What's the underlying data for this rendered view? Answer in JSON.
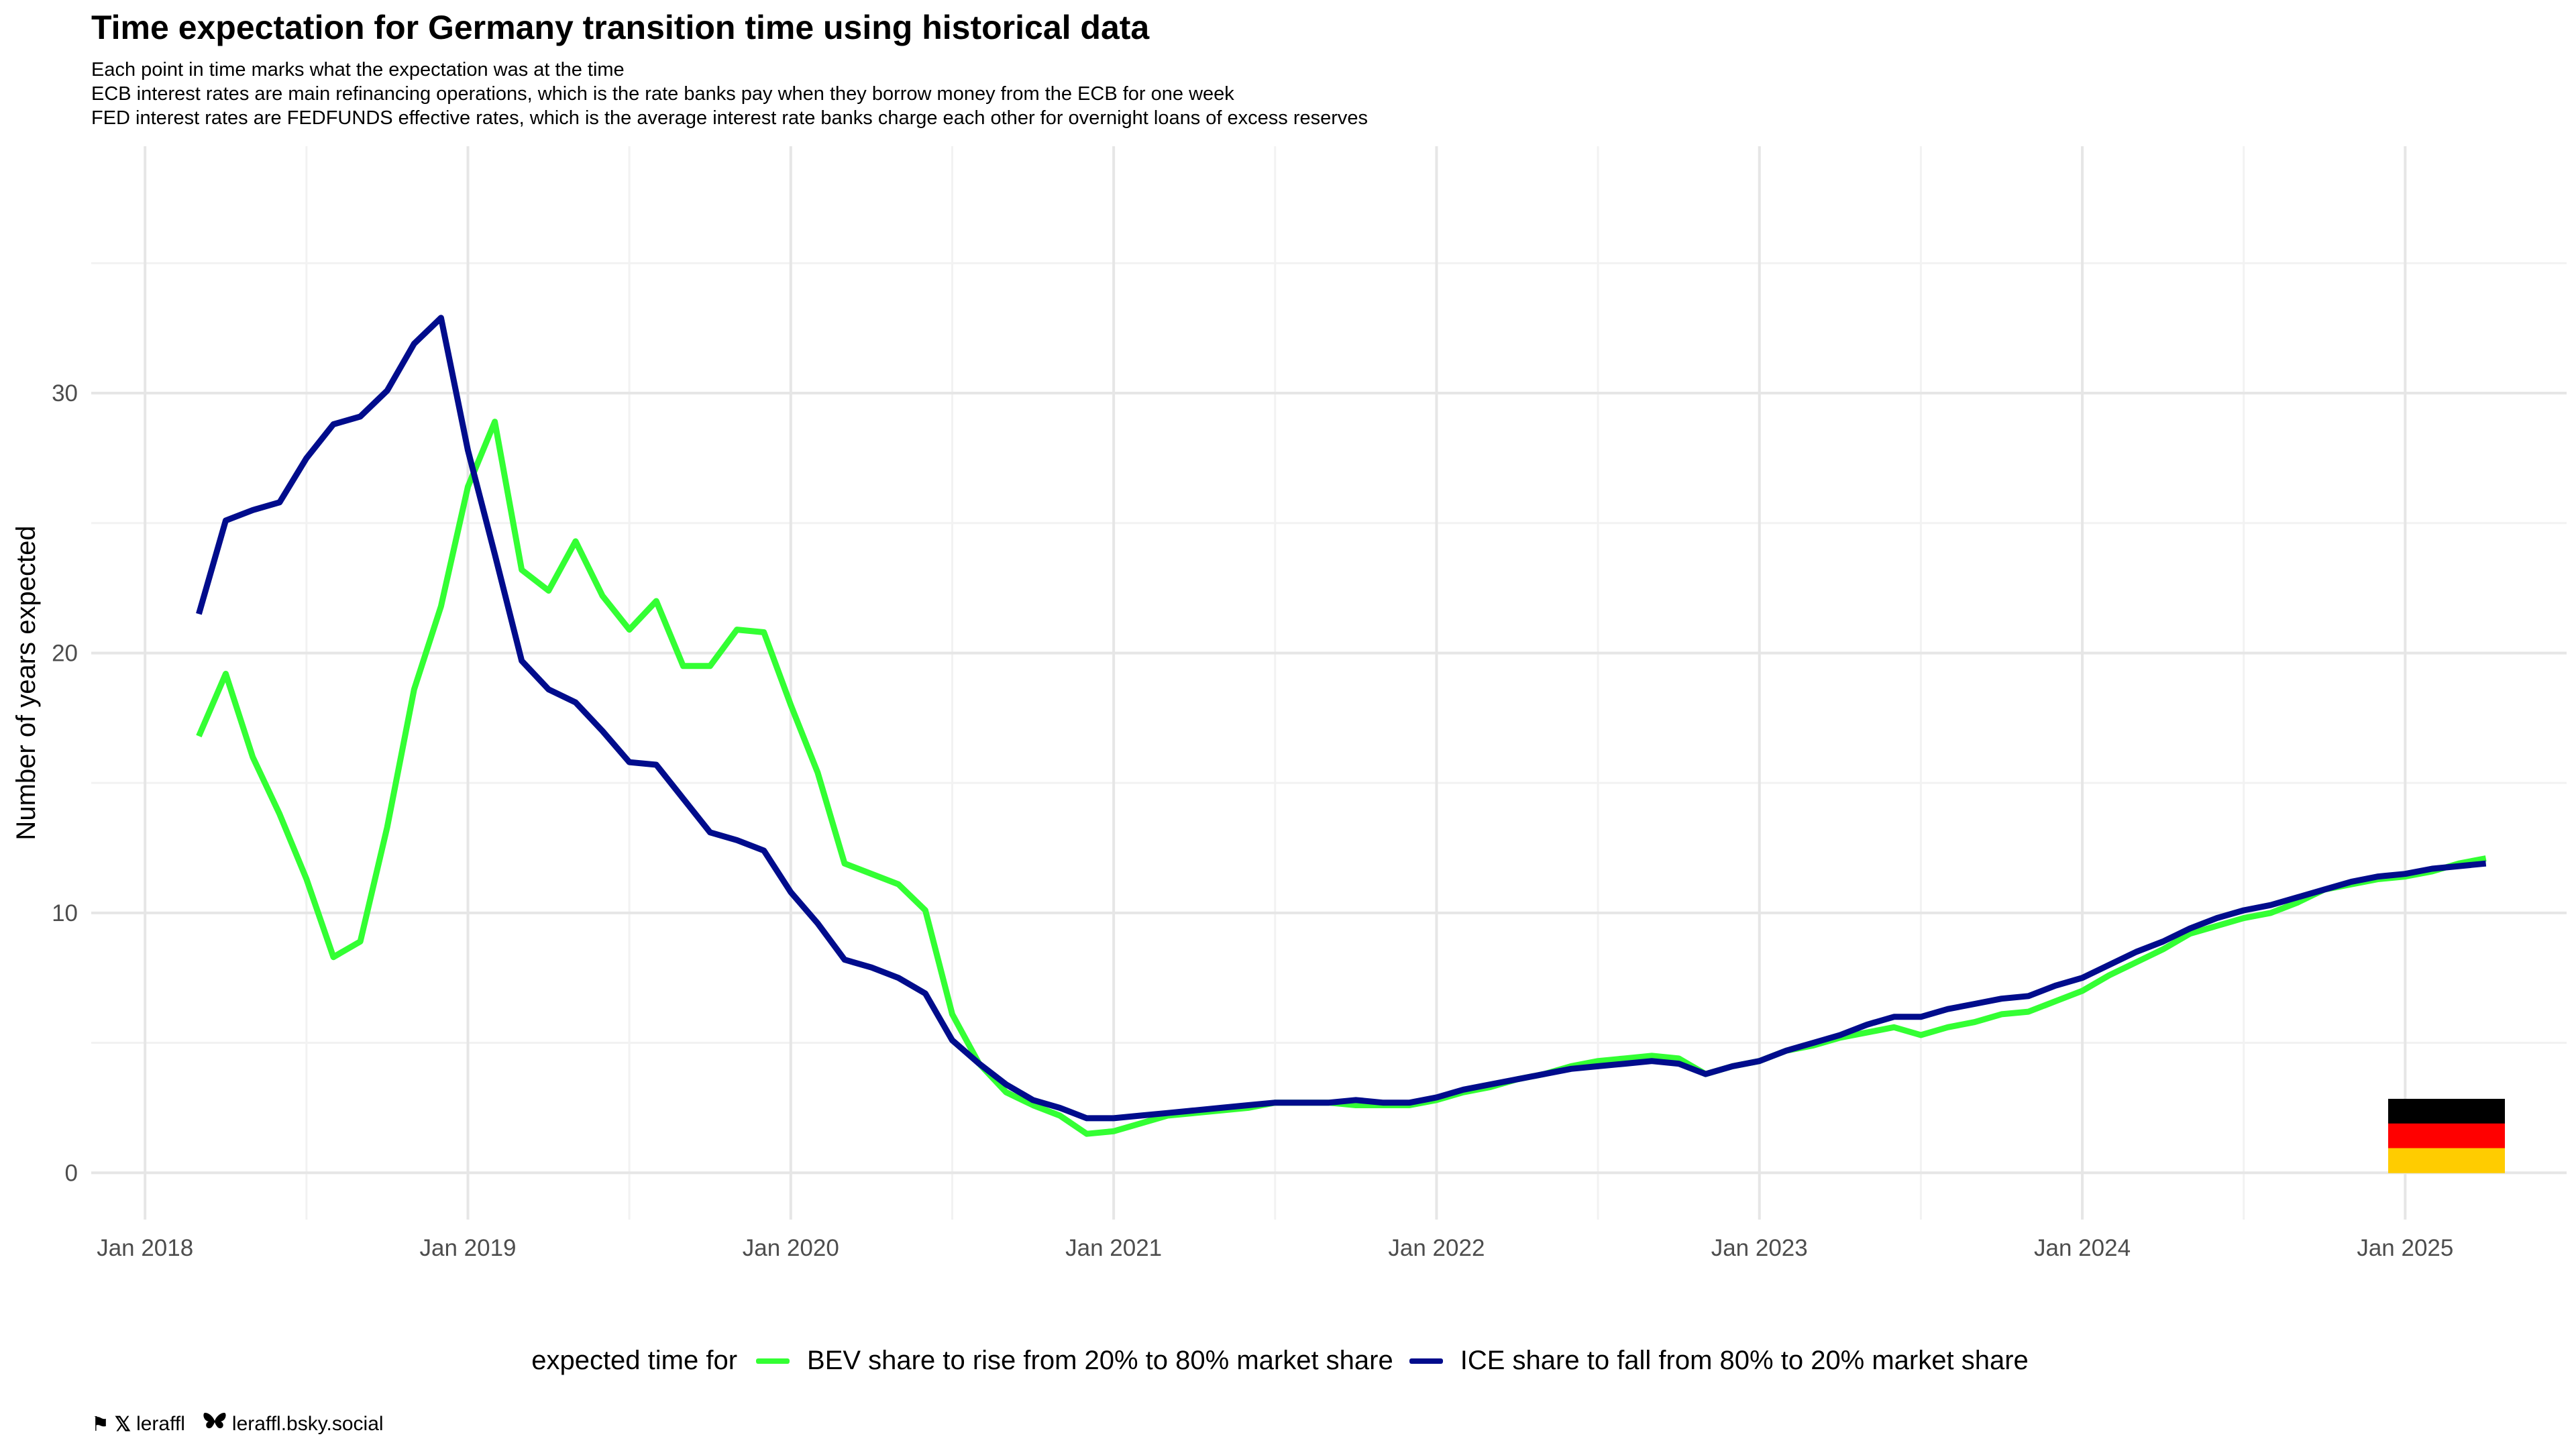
{
  "title": "Time expectation for Germany transition time using historical data",
  "subtitle": [
    "Each point in time marks what the expectation was at the time",
    "ECB interest rates are main refinancing operations, which is the rate banks pay when they borrow money from the ECB for one week",
    "FED interest rates are FEDFUNDS effective rates, which is the average interest rate banks charge each other for overnight loans of excess reserves"
  ],
  "legend": {
    "title": "expected time for",
    "items": [
      "BEV share to rise from 20% to 80% market share",
      "ICE share to fall from 80% to 20% market share"
    ]
  },
  "caption": {
    "handle": "leraffl",
    "bluesky": "leraffl.bsky.social",
    "icons": [
      "flag-icon",
      "x-logo-icon",
      "butterfly-icon"
    ]
  },
  "colors": {
    "bev": "#33ff33",
    "ice": "#000c8c",
    "grid_major": "#e6e6e6",
    "grid_minor": "#f2f2f2",
    "flag": [
      "#000000",
      "#ff0000",
      "#ffcc00"
    ]
  },
  "chart_data": {
    "type": "line",
    "title": "Time expectation for Germany transition time using historical data",
    "xlabel": "",
    "ylabel": "Number of years expected",
    "x_range": [
      "2017-11",
      "2025-07"
    ],
    "ylim": [
      -1.8,
      39.5
    ],
    "x_ticks": [
      "Jan 2018",
      "Jan 2019",
      "Jan 2020",
      "Jan 2021",
      "Jan 2022",
      "Jan 2023",
      "Jan 2024",
      "Jan 2025"
    ],
    "y_ticks": [
      0,
      10,
      20,
      30
    ],
    "grid": true,
    "legend_position": "bottom",
    "x": [
      "2018-03",
      "2018-04",
      "2018-05",
      "2018-06",
      "2018-07",
      "2018-08",
      "2018-09",
      "2018-10",
      "2018-11",
      "2018-12",
      "2019-01",
      "2019-02",
      "2019-03",
      "2019-04",
      "2019-05",
      "2019-06",
      "2019-07",
      "2019-08",
      "2019-09",
      "2019-10",
      "2019-11",
      "2019-12",
      "2020-01",
      "2020-02",
      "2020-03",
      "2020-04",
      "2020-05",
      "2020-06",
      "2020-07",
      "2020-08",
      "2020-09",
      "2020-10",
      "2020-11",
      "2020-12",
      "2021-01",
      "2021-02",
      "2021-03",
      "2021-04",
      "2021-05",
      "2021-06",
      "2021-07",
      "2021-08",
      "2021-09",
      "2021-10",
      "2021-11",
      "2021-12",
      "2022-01",
      "2022-02",
      "2022-03",
      "2022-04",
      "2022-05",
      "2022-06",
      "2022-07",
      "2022-08",
      "2022-09",
      "2022-10",
      "2022-11",
      "2022-12",
      "2023-01",
      "2023-02",
      "2023-03",
      "2023-04",
      "2023-05",
      "2023-06",
      "2023-07",
      "2023-08",
      "2023-09",
      "2023-10",
      "2023-11",
      "2023-12",
      "2024-01",
      "2024-02",
      "2024-03",
      "2024-04",
      "2024-05",
      "2024-06",
      "2024-07",
      "2024-08",
      "2024-09",
      "2024-10",
      "2024-11",
      "2024-12",
      "2025-01",
      "2025-02",
      "2025-03",
      "2025-04"
    ],
    "series": [
      {
        "name": "BEV share to rise from 20% to 80% market share",
        "color": "#33ff33",
        "values": [
          16.8,
          19.2,
          16.0,
          13.8,
          11.3,
          8.3,
          8.9,
          13.3,
          18.6,
          21.8,
          26.4,
          28.9,
          23.2,
          22.4,
          24.3,
          22.2,
          20.9,
          22.0,
          19.5,
          19.5,
          20.9,
          20.8,
          18.0,
          15.4,
          11.9,
          11.5,
          11.1,
          10.1,
          6.1,
          4.2,
          3.1,
          2.6,
          2.2,
          1.5,
          1.6,
          1.9,
          2.2,
          2.3,
          2.4,
          2.5,
          2.7,
          2.7,
          2.7,
          2.6,
          2.6,
          2.6,
          2.8,
          3.1,
          3.3,
          3.6,
          3.8,
          4.1,
          4.3,
          4.4,
          4.5,
          4.4,
          3.8,
          4.1,
          4.3,
          4.7,
          4.9,
          5.2,
          5.4,
          5.6,
          5.3,
          5.6,
          5.8,
          6.1,
          6.2,
          6.6,
          7.0,
          7.6,
          8.1,
          8.6,
          9.2,
          9.5,
          9.8,
          10.0,
          10.4,
          10.9,
          11.1,
          11.3,
          11.4,
          11.6,
          11.9,
          12.1
        ]
      },
      {
        "name": "ICE share to fall from 80% to 20% market share",
        "color": "#000c8c",
        "values": [
          21.5,
          25.1,
          25.5,
          25.8,
          27.5,
          28.8,
          29.1,
          30.1,
          31.9,
          32.9,
          27.8,
          23.8,
          19.7,
          18.6,
          18.1,
          17.0,
          15.8,
          15.7,
          14.4,
          13.1,
          12.8,
          12.4,
          10.8,
          9.6,
          8.2,
          7.9,
          7.5,
          6.9,
          5.1,
          4.2,
          3.4,
          2.8,
          2.5,
          2.1,
          2.1,
          2.2,
          2.3,
          2.4,
          2.5,
          2.6,
          2.7,
          2.7,
          2.7,
          2.8,
          2.7,
          2.7,
          2.9,
          3.2,
          3.4,
          3.6,
          3.8,
          4.0,
          4.1,
          4.2,
          4.3,
          4.2,
          3.8,
          4.1,
          4.3,
          4.7,
          5.0,
          5.3,
          5.7,
          6.0,
          6.0,
          6.3,
          6.5,
          6.7,
          6.8,
          7.2,
          7.5,
          8.0,
          8.5,
          8.9,
          9.4,
          9.8,
          10.1,
          10.3,
          10.6,
          10.9,
          11.2,
          11.4,
          11.5,
          11.7,
          11.8,
          11.9
        ]
      }
    ]
  }
}
